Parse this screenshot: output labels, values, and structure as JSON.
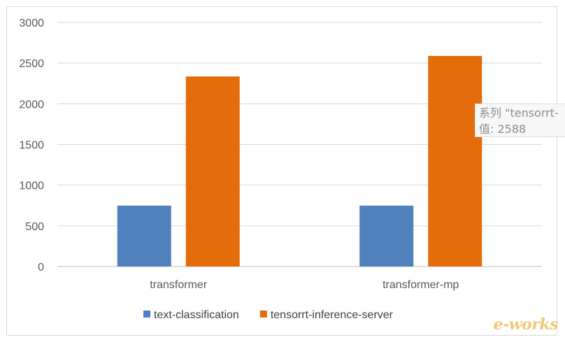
{
  "chart_data": {
    "type": "bar",
    "categories": [
      "transformer",
      "transformer-mp"
    ],
    "series": [
      {
        "name": "text-classification",
        "values": [
          748,
          748
        ],
        "color": "#4f81bd"
      },
      {
        "name": "tensorrt-inference-server",
        "values": [
          2335,
          2588
        ],
        "color": "#e46c0a"
      }
    ],
    "title": "",
    "xlabel": "",
    "ylabel": "",
    "ylim": [
      0,
      3000
    ],
    "yticks": [
      0,
      500,
      1000,
      1500,
      2000,
      2500,
      3000
    ],
    "grid": true,
    "legend_position": "bottom"
  },
  "tooltip": {
    "line1": "系列 \"tensorrt-",
    "line2": "值: 2588"
  },
  "watermark": {
    "text": "e-works"
  }
}
